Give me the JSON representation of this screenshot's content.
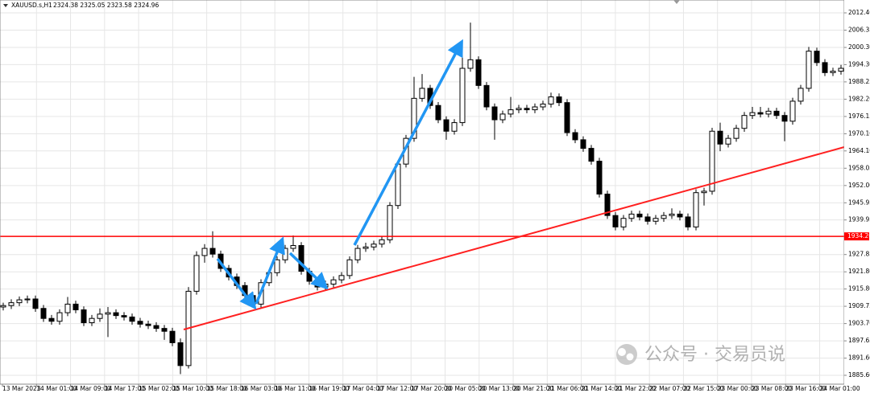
{
  "chart_data": {
    "type": "candlestick",
    "header": {
      "symbol": "XAUUSD.s,H1",
      "quote": "2324.38 2325.05 2323.58 2324.96"
    },
    "watermark": "公众号 · 交易员说",
    "bull_color": "#ffffff",
    "bear_color": "#000000",
    "grid": true,
    "ylim": [
      1882.5,
      2016.9
    ],
    "yticks": [
      {
        "value": 2012.4,
        "label": "2012.40"
      },
      2006.35,
      {
        "value": 2000.3,
        "label": "2000.30"
      },
      {
        "value": 1994.3,
        "label": "1994.30"
      },
      1988.25,
      {
        "value": 1982.2,
        "label": "1982.20"
      },
      1976.15,
      {
        "value": 1970.1,
        "label": "1970.10"
      },
      {
        "value": 1964.1,
        "label": "1964.10"
      },
      1958.05,
      {
        "value": 1952,
        "label": "1952.00"
      },
      1945.95,
      1939.95,
      1927.85,
      {
        "value": 1921.8,
        "label": "1921.80"
      },
      {
        "value": 1915.8,
        "label": "1915.80"
      },
      1909.75,
      {
        "value": 1903.7,
        "label": "1903.70"
      },
      1897.65,
      {
        "value": 1891.6,
        "label": "1891.60"
      },
      {
        "value": 1885.6,
        "label": "1885.60"
      }
    ],
    "level": {
      "value": 1934.2,
      "label": "1934.20",
      "color": "#ff0000"
    },
    "x_labels": [
      "13 Mar 2023",
      "14 Mar 01:00",
      "14 Mar 09:00",
      "14 Mar 17:00",
      "15 Mar 02:00",
      "15 Mar 10:00",
      "15 Mar 18:00",
      "16 Mar 03:00",
      "16 Mar 11:00",
      "16 Mar 19:00",
      "17 Mar 04:00",
      "17 Mar 12:00",
      "17 Mar 20:00",
      "20 Mar 05:00",
      "20 Mar 13:00",
      "20 Mar 21:00",
      "21 Mar 06:00",
      "21 Mar 14:00",
      "21 Mar 22:00",
      "22 Mar 07:00",
      "22 Mar 15:00",
      "23 Mar 00:00",
      "23 Mar 08:00",
      "23 Mar 16:00",
      "24 Mar 01:00"
    ],
    "ohlc": [
      [
        1909.5,
        1911.0,
        1908.3,
        1910.0
      ],
      [
        1910.0,
        1912.2,
        1908.8,
        1911.0
      ],
      [
        1911.0,
        1913.2,
        1909.8,
        1912.0
      ],
      [
        1912.0,
        1913.5,
        1910.8,
        1912.3
      ],
      [
        1912.3,
        1913.5,
        1907.8,
        1909.0
      ],
      [
        1909.0,
        1910.2,
        1904.3,
        1905.5
      ],
      [
        1905.5,
        1906.7,
        1903.3,
        1904.5
      ],
      [
        1904.5,
        1908.7,
        1903.3,
        1907.5
      ],
      [
        1907.5,
        1913.0,
        1906.3,
        1910.5
      ],
      [
        1910.5,
        1911.7,
        1907.3,
        1908.5
      ],
      [
        1908.5,
        1909.7,
        1902.8,
        1904.0
      ],
      [
        1904.0,
        1906.7,
        1902.8,
        1905.5
      ],
      [
        1905.5,
        1909.0,
        1904.3,
        1907.0
      ],
      [
        1907.0,
        1909.5,
        1899.0,
        1907.5
      ],
      [
        1907.5,
        1908.7,
        1905.3,
        1906.5
      ],
      [
        1906.5,
        1907.7,
        1904.8,
        1906.0
      ],
      [
        1906.0,
        1907.2,
        1903.3,
        1904.5
      ],
      [
        1904.5,
        1905.7,
        1902.3,
        1903.5
      ],
      [
        1903.5,
        1904.7,
        1901.8,
        1903.0
      ],
      [
        1903.0,
        1904.2,
        1900.8,
        1902.0
      ],
      [
        1902.0,
        1903.2,
        1898.0,
        1901.0
      ],
      [
        1901.0,
        1902.2,
        1895.8,
        1897.0
      ],
      [
        1897.0,
        1898.5,
        1886.0,
        1889.0
      ],
      [
        1889.0,
        1916.5,
        1888.0,
        1915.0
      ],
      [
        1915.0,
        1929.0,
        1913.8,
        1927.5
      ],
      [
        1927.5,
        1931.5,
        1925.0,
        1930.0
      ],
      [
        1930.0,
        1936.0,
        1926.8,
        1928.0
      ],
      [
        1928.0,
        1929.2,
        1921.8,
        1923.0
      ],
      [
        1923.0,
        1924.2,
        1918.8,
        1920.0
      ],
      [
        1920.0,
        1921.2,
        1915.8,
        1917.0
      ],
      [
        1917.0,
        1918.2,
        1912.3,
        1913.5
      ],
      [
        1913.5,
        1914.7,
        1909.3,
        1910.5
      ],
      [
        1910.5,
        1919.2,
        1909.3,
        1918.0
      ],
      [
        1918.0,
        1922.7,
        1916.8,
        1921.5
      ],
      [
        1921.5,
        1927.2,
        1920.3,
        1926.0
      ],
      [
        1926.0,
        1931.2,
        1924.8,
        1930.0
      ],
      [
        1930.0,
        1934.5,
        1928.8,
        1931.0
      ],
      [
        1931.0,
        1932.2,
        1920.8,
        1922.0
      ],
      [
        1922.0,
        1923.2,
        1917.3,
        1918.5
      ],
      [
        1918.5,
        1919.7,
        1915.3,
        1916.5
      ],
      [
        1916.5,
        1918.7,
        1915.3,
        1917.5
      ],
      [
        1917.5,
        1920.2,
        1916.3,
        1919.0
      ],
      [
        1919.0,
        1921.7,
        1917.8,
        1920.5
      ],
      [
        1920.5,
        1927.2,
        1919.3,
        1926.0
      ],
      [
        1926.0,
        1931.2,
        1924.8,
        1930.0
      ],
      [
        1930.0,
        1932.0,
        1928.8,
        1930.5
      ],
      [
        1930.5,
        1932.7,
        1929.3,
        1931.5
      ],
      [
        1931.5,
        1934.2,
        1930.3,
        1933.0
      ],
      [
        1933.0,
        1946.2,
        1931.8,
        1945.0
      ],
      [
        1945.0,
        1960.7,
        1943.8,
        1959.5
      ],
      [
        1959.5,
        1969.7,
        1958.3,
        1968.5
      ],
      [
        1968.5,
        1990.0,
        1967.3,
        1982.5
      ],
      [
        1982.5,
        1991.0,
        1981.3,
        1986.0
      ],
      [
        1986.0,
        1987.2,
        1978.8,
        1980.0
      ],
      [
        1980.0,
        1981.2,
        1973.8,
        1975.0
      ],
      [
        1975.0,
        1976.2,
        1968.0,
        1971.0
      ],
      [
        1971.0,
        1975.2,
        1969.8,
        1974.0
      ],
      [
        1974.0,
        2002.0,
        1972.8,
        1993.0
      ],
      [
        1993.0,
        2009.0,
        1991.8,
        1996.0
      ],
      [
        1996.0,
        1997.2,
        1985.8,
        1987.0
      ],
      [
        1987.0,
        1988.2,
        1978.3,
        1979.5
      ],
      [
        1979.5,
        1980.7,
        1968.0,
        1975.0
      ],
      [
        1975.0,
        1978.2,
        1973.8,
        1977.0
      ],
      [
        1977.0,
        1983.0,
        1975.8,
        1978.5
      ],
      [
        1978.5,
        1980.2,
        1977.3,
        1979.0
      ],
      [
        1979.0,
        1980.2,
        1977.3,
        1978.5
      ],
      [
        1978.5,
        1980.7,
        1977.3,
        1979.5
      ],
      [
        1979.5,
        1981.7,
        1978.3,
        1980.5
      ],
      [
        1980.5,
        1984.5,
        1979.3,
        1983.0
      ],
      [
        1983.0,
        1984.2,
        1979.8,
        1981.0
      ],
      [
        1981.0,
        1982.2,
        1969.3,
        1970.5
      ],
      [
        1970.5,
        1971.7,
        1966.8,
        1968.0
      ],
      [
        1968.0,
        1969.2,
        1963.8,
        1965.0
      ],
      [
        1965.0,
        1966.2,
        1959.3,
        1960.5
      ],
      [
        1960.5,
        1961.7,
        1947.8,
        1949.0
      ],
      [
        1949.0,
        1950.2,
        1940.3,
        1941.5
      ],
      [
        1941.5,
        1942.7,
        1936.3,
        1937.5
      ],
      [
        1937.5,
        1941.7,
        1936.3,
        1940.5
      ],
      [
        1940.5,
        1943.2,
        1939.3,
        1942.0
      ],
      [
        1942.0,
        1943.2,
        1939.8,
        1941.0
      ],
      [
        1941.0,
        1942.2,
        1938.3,
        1939.5
      ],
      [
        1939.5,
        1941.7,
        1938.3,
        1940.5
      ],
      [
        1940.5,
        1942.7,
        1939.3,
        1941.5
      ],
      [
        1941.5,
        1944.0,
        1940.3,
        1942.0
      ],
      [
        1942.0,
        1943.2,
        1939.8,
        1941.0
      ],
      [
        1941.0,
        1942.2,
        1936.3,
        1937.5
      ],
      [
        1937.5,
        1950.7,
        1936.3,
        1949.5
      ],
      [
        1949.5,
        1951.2,
        1945.0,
        1950.0
      ],
      [
        1950.0,
        1972.2,
        1948.8,
        1971.0
      ],
      [
        1971.0,
        1974.0,
        1964.0,
        1966.5
      ],
      [
        1966.5,
        1969.7,
        1965.3,
        1968.5
      ],
      [
        1968.5,
        1973.2,
        1967.3,
        1972.0
      ],
      [
        1972.0,
        1977.7,
        1970.8,
        1976.5
      ],
      [
        1976.5,
        1979.5,
        1975.3,
        1977.5
      ],
      [
        1977.5,
        1979.5,
        1975.8,
        1977.0
      ],
      [
        1977.0,
        1979.2,
        1975.8,
        1978.0
      ],
      [
        1978.0,
        1979.2,
        1975.3,
        1976.5
      ],
      [
        1976.5,
        1977.7,
        1967.5,
        1974.5
      ],
      [
        1974.5,
        1982.7,
        1973.3,
        1981.5
      ],
      [
        1981.5,
        1987.2,
        1980.3,
        1986.0
      ],
      [
        1986.0,
        2000.5,
        1984.8,
        1999.0
      ],
      [
        1999.0,
        2000.2,
        1993.8,
        1995.0
      ],
      [
        1995.0,
        1996.2,
        1990.3,
        1991.5
      ],
      [
        1991.5,
        1993.2,
        1990.3,
        1992.0
      ],
      [
        1992.0,
        1994.2,
        1990.8,
        1993.0
      ]
    ]
  }
}
